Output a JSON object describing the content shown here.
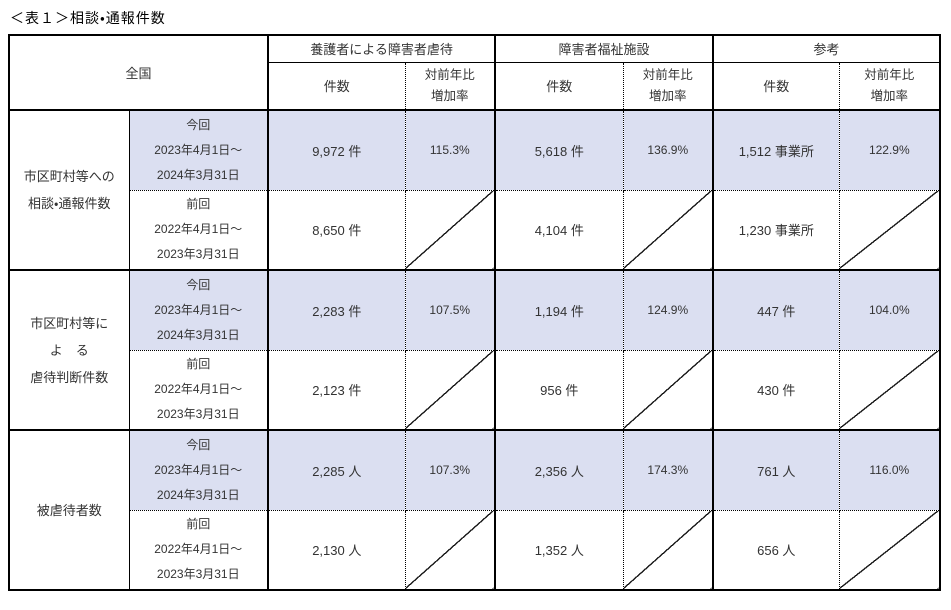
{
  "title": "＜表１＞相談・通報件数",
  "colors": {
    "highlight": "#dbdff1",
    "border": "#000000"
  },
  "header": {
    "region_label": "全国",
    "groups": [
      {
        "label": "養護者による障害者虐待"
      },
      {
        "label": "障害者福祉施設"
      },
      {
        "label": "参考"
      }
    ],
    "count_label": "件数",
    "rate_label_lines": [
      "対前年比",
      "増加率"
    ]
  },
  "rows": [
    {
      "label_lines": [
        "市区町村等への",
        "相談・通報件数"
      ],
      "current": {
        "period_lines": [
          "今回",
          "2023年4月1日～",
          "2024年3月31日"
        ],
        "values": [
          "9,972 件",
          "115.3%",
          "5,618 件",
          "136.9%",
          "1,512 事業所",
          "122.9%"
        ]
      },
      "previous": {
        "period_lines": [
          "前回",
          "2022年4月1日～",
          "2023年3月31日"
        ],
        "values": [
          "8,650 件",
          "4,104 件",
          "1,230 事業所"
        ]
      }
    },
    {
      "label_lines": [
        "市区町村等に",
        "よ　る",
        "虐待判断件数"
      ],
      "current": {
        "period_lines": [
          "今回",
          "2023年4月1日～",
          "2024年3月31日"
        ],
        "values": [
          "2,283 件",
          "107.5%",
          "1,194 件",
          "124.9%",
          "447 件",
          "104.0%"
        ]
      },
      "previous": {
        "period_lines": [
          "前回",
          "2022年4月1日～",
          "2023年3月31日"
        ],
        "values": [
          "2,123 件",
          "956 件",
          "430 件"
        ]
      }
    },
    {
      "label_lines": [
        "被虐待者数"
      ],
      "current": {
        "period_lines": [
          "今回",
          "2023年4月1日～",
          "2024年3月31日"
        ],
        "values": [
          "2,285 人",
          "107.3%",
          "2,356 人",
          "174.3%",
          "761 人",
          "116.0%"
        ]
      },
      "previous": {
        "period_lines": [
          "前回",
          "2022年4月1日～",
          "2023年3月31日"
        ],
        "values": [
          "2,130 人",
          "1,352 人",
          "656 人"
        ]
      }
    }
  ]
}
